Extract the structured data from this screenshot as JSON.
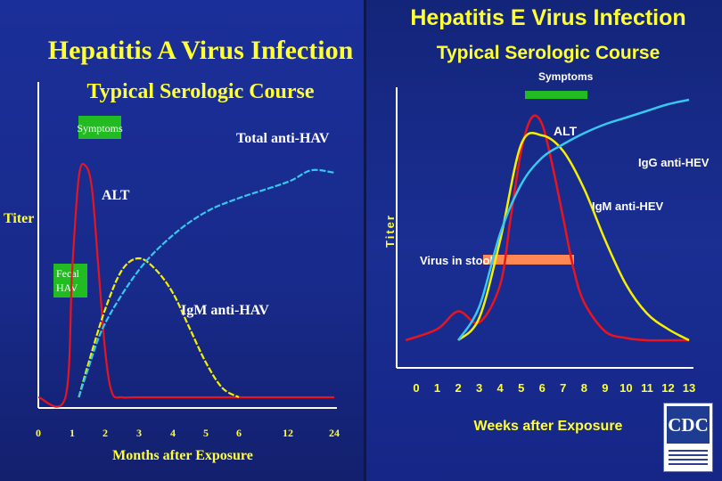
{
  "colors": {
    "background_a": "#1b2f9a",
    "background_e": "#1a2e93",
    "title_yellow": "#ffff33",
    "alt_red": "#e8141e",
    "igm_yellow": "#f5f000",
    "igg_cyan": "#36c8ee",
    "symptoms_green": "#22bb22",
    "virus_orange": "#ff8855"
  },
  "chart_data": [
    {
      "type": "line",
      "title": "Hepatitis A Virus Infection",
      "subtitle": "Typical Serologic Course",
      "xlabel": "Months after Exposure",
      "ylabel": "Titer",
      "x_ticks": [
        "0",
        "1",
        "2",
        "3",
        "4",
        "5",
        "6",
        "12",
        "24"
      ],
      "grid": false,
      "annotations": [
        "Symptoms",
        "Fecal HAV"
      ],
      "series": [
        {
          "name": "ALT",
          "x": [
            0,
            0.8,
            1.0,
            1.2,
            1.4,
            1.6,
            1.8,
            2.0,
            2.2,
            2.5,
            3,
            6,
            24
          ],
          "y": [
            0,
            0,
            0.55,
            0.95,
            1.0,
            0.9,
            0.55,
            0.2,
            0.02,
            0,
            0,
            0,
            0
          ]
        },
        {
          "name": "IgM anti-HAV",
          "x": [
            1.2,
            1.5,
            2.0,
            2.5,
            3.0,
            3.5,
            4.0,
            4.5,
            5.0,
            5.5,
            6.0
          ],
          "y": [
            0,
            0.15,
            0.38,
            0.55,
            0.6,
            0.55,
            0.45,
            0.3,
            0.15,
            0.04,
            0
          ]
        },
        {
          "name": "Total anti-HAV",
          "x": [
            1.2,
            1.5,
            2.0,
            3.0,
            4.0,
            5.0,
            6.0,
            12,
            18,
            24
          ],
          "y": [
            0,
            0.13,
            0.32,
            0.55,
            0.7,
            0.8,
            0.86,
            0.93,
            0.98,
            0.97
          ]
        }
      ]
    },
    {
      "type": "line",
      "title": "Hepatitis E Virus Infection",
      "subtitle": "Typical Serologic Course",
      "xlabel": "Weeks after Exposure",
      "ylabel": "Titer",
      "x_ticks": [
        "0",
        "1",
        "2",
        "3",
        "4",
        "5",
        "6",
        "7",
        "8",
        "9",
        "10",
        "11",
        "12",
        "13"
      ],
      "grid": false,
      "annotations": [
        "Symptoms",
        "Virus in stool"
      ],
      "series": [
        {
          "name": "ALT",
          "x": [
            -0.5,
            1,
            2,
            3,
            4,
            4.5,
            5,
            5.5,
            6,
            6.5,
            7,
            7.5,
            8,
            9,
            10,
            11,
            12,
            13
          ],
          "y": [
            0,
            0.05,
            0.13,
            0.08,
            0.25,
            0.55,
            0.85,
            1.0,
            0.97,
            0.78,
            0.55,
            0.32,
            0.17,
            0.04,
            0.01,
            0,
            0,
            0
          ]
        },
        {
          "name": "IgM anti-HEV",
          "x": [
            2,
            3,
            4,
            5,
            6,
            7,
            8,
            9,
            10,
            11,
            12,
            13
          ],
          "y": [
            0,
            0.1,
            0.45,
            0.88,
            0.92,
            0.85,
            0.68,
            0.45,
            0.25,
            0.12,
            0.05,
            0
          ]
        },
        {
          "name": "IgG anti-HEV",
          "x": [
            2,
            3,
            4,
            5,
            6,
            7,
            8,
            9,
            10,
            11,
            12,
            13
          ],
          "y": [
            0,
            0.15,
            0.48,
            0.7,
            0.82,
            0.88,
            0.93,
            0.97,
            1.0,
            1.03,
            1.06,
            1.08
          ]
        }
      ]
    }
  ]
}
